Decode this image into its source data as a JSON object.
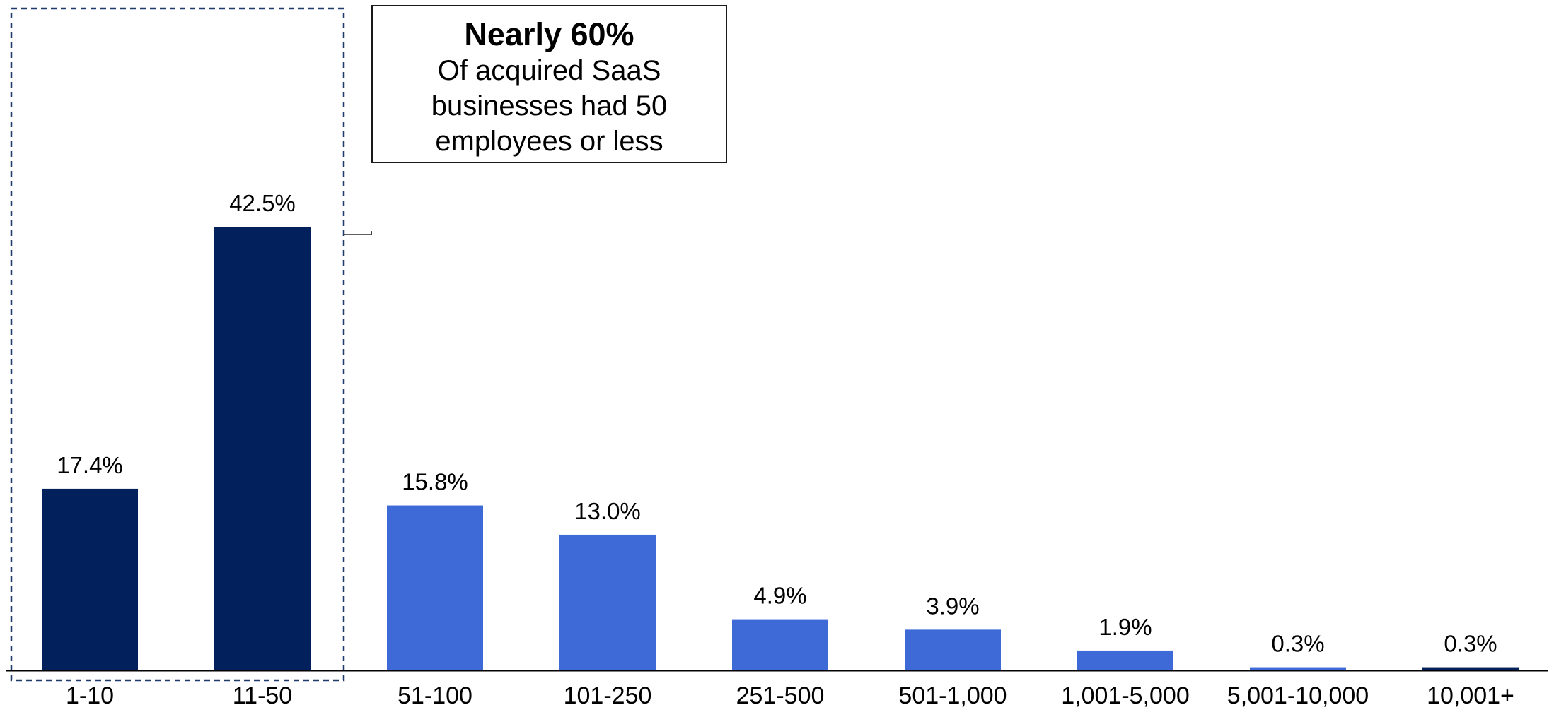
{
  "chart_data": {
    "type": "bar",
    "title": "",
    "xlabel": "",
    "ylabel": "",
    "categories": [
      "1-10",
      "11-50",
      "51-100",
      "101-250",
      "251-500",
      "501-1,000",
      "1,001-5,000",
      "5,001-10,000",
      "10,001+"
    ],
    "values": [
      17.4,
      42.5,
      15.8,
      13.0,
      4.9,
      3.9,
      1.9,
      0.3,
      0.3
    ],
    "value_labels": [
      "17.4%",
      "42.5%",
      "15.8%",
      "13.0%",
      "4.9%",
      "3.9%",
      "1.9%",
      "0.3%",
      "0.3%"
    ],
    "ylim": [
      0,
      45
    ],
    "grid": false,
    "y_axis_visible": false,
    "highlighted_categories": [
      "1-10",
      "11-50",
      "10,001+"
    ],
    "colors": {
      "highlight": "#02205c",
      "default": "#3d6ad6",
      "highlight_frame": "#1f3a6b",
      "axis": "#000000",
      "text": "#000000"
    },
    "annotation": {
      "headline": "Nearly 60%",
      "body": "Of acquired SaaS businesses had 50 employees or less",
      "brackets_categories": [
        "1-10",
        "11-50"
      ]
    }
  }
}
